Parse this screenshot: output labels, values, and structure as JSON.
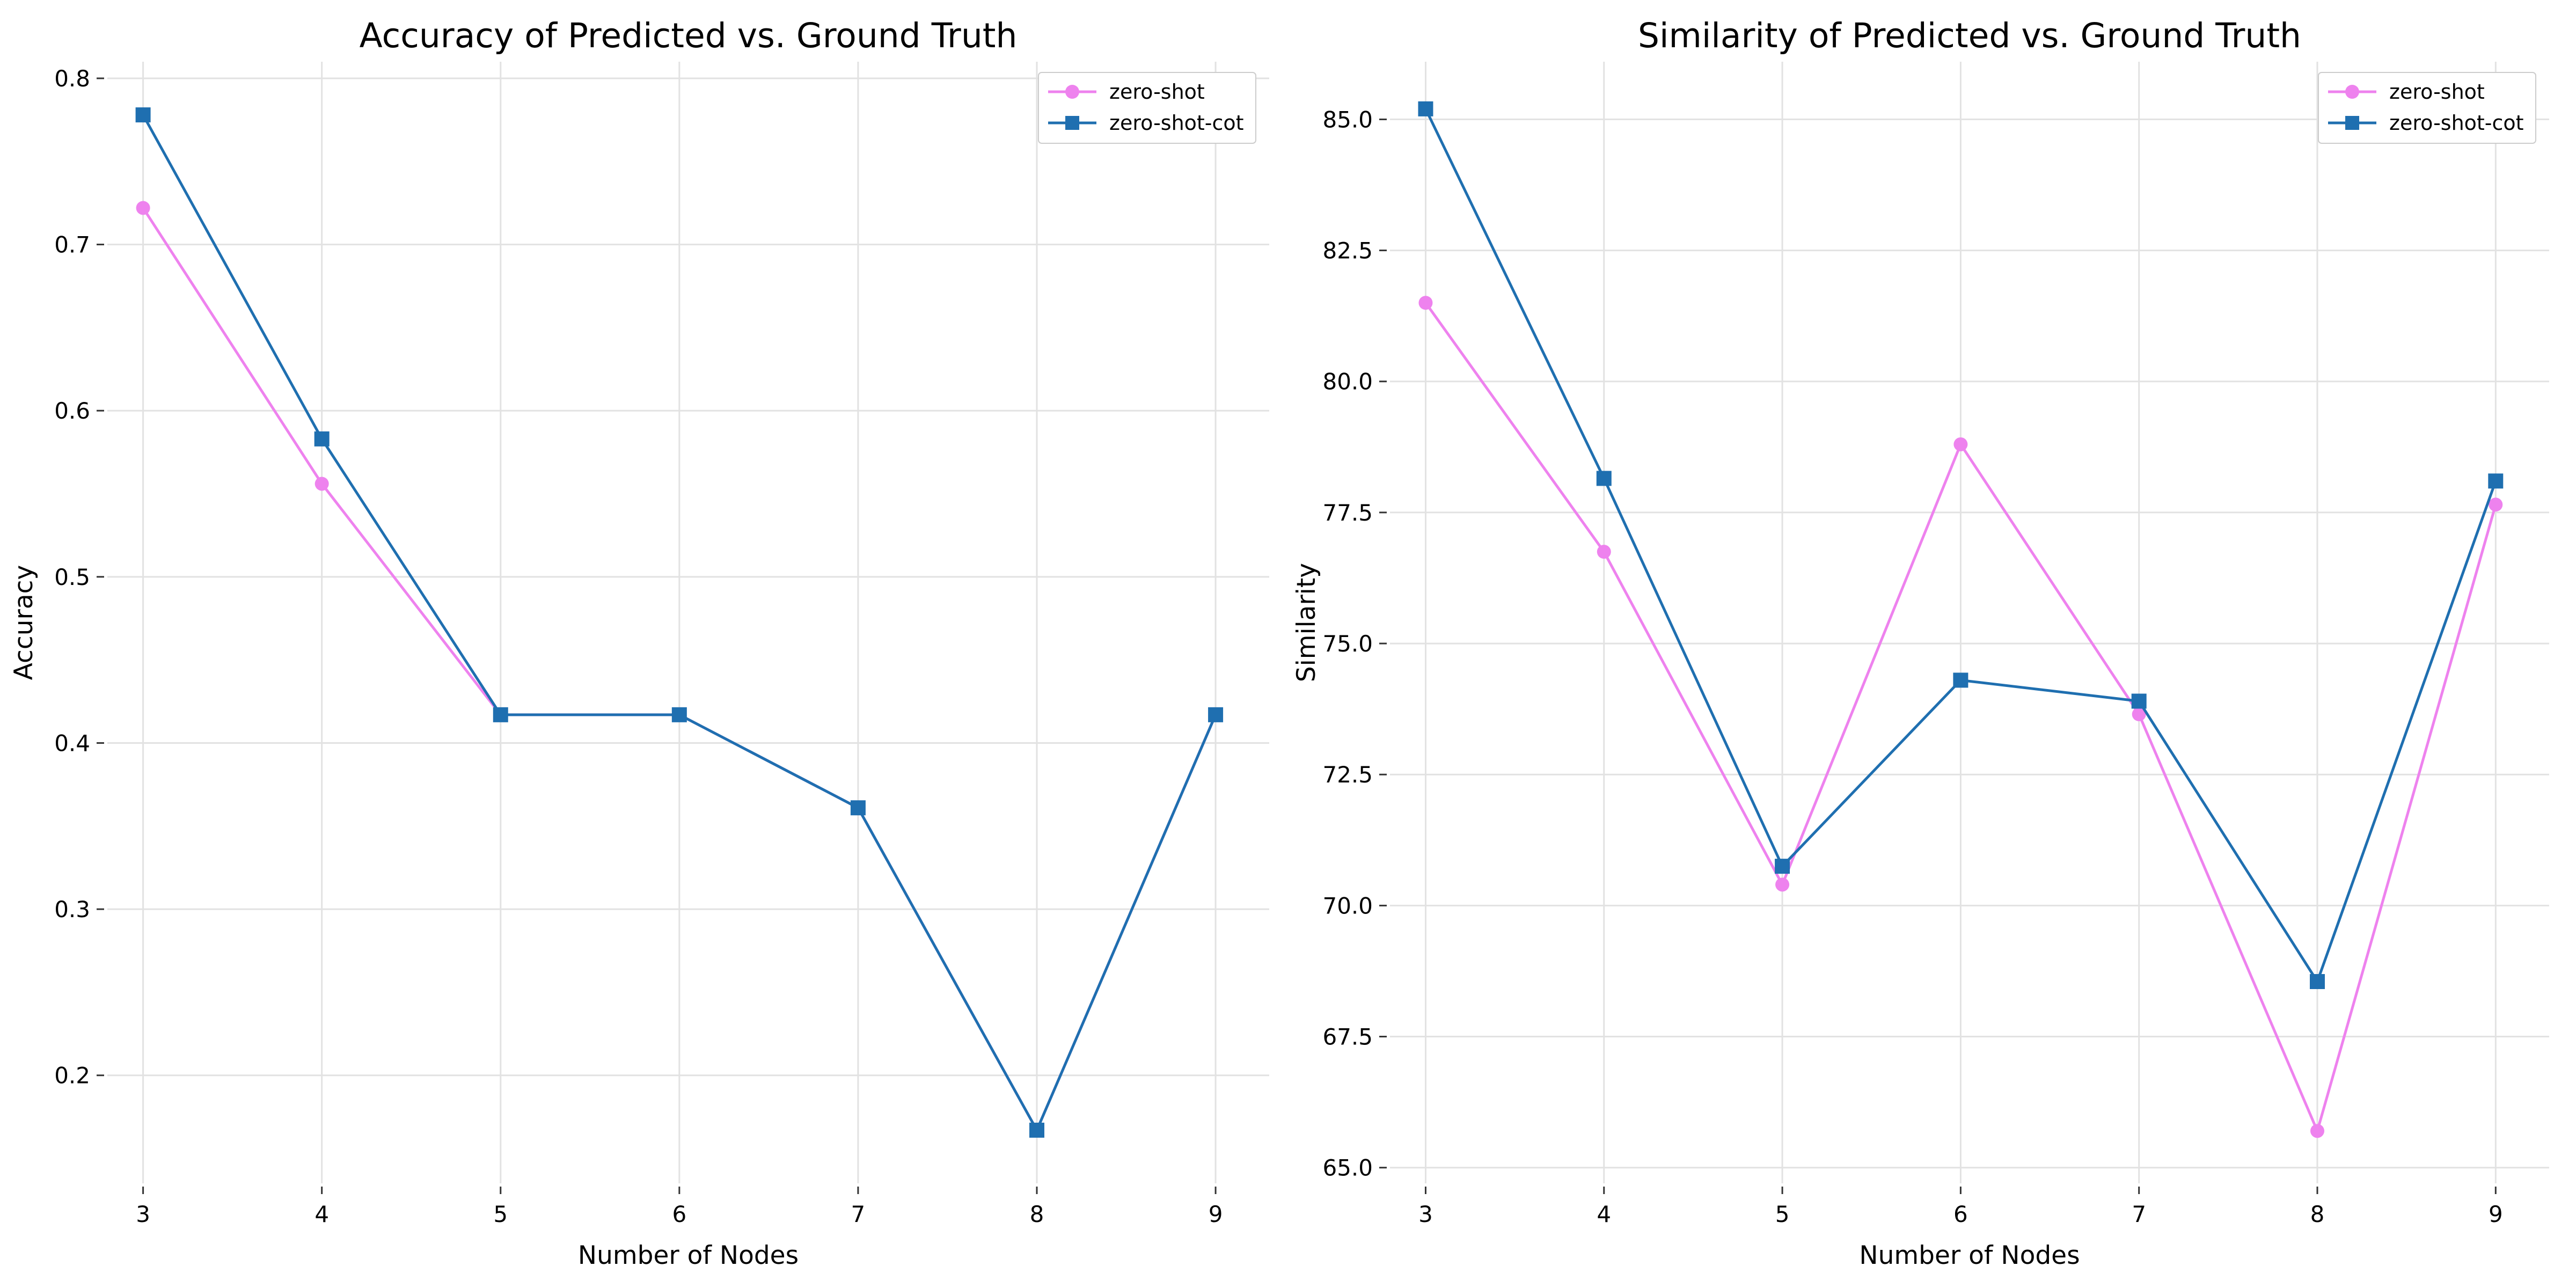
{
  "chart_data": [
    {
      "type": "line",
      "title": "Accuracy of Predicted vs. Ground Truth",
      "xlabel": "Number of Nodes",
      "ylabel": "Accuracy",
      "x": [
        3,
        4,
        5,
        6,
        7,
        8,
        9
      ],
      "xticks": [
        "3",
        "4",
        "5",
        "6",
        "7",
        "8",
        "9"
      ],
      "yticks": [
        "0.2",
        "0.3",
        "0.4",
        "0.5",
        "0.6",
        "0.7",
        "0.8"
      ],
      "ylim": [
        0.135,
        0.81
      ],
      "grid": true,
      "legend_position": "top-right",
      "series": [
        {
          "name": "zero-shot",
          "color": "#ee82ee",
          "marker": "circle",
          "values": [
            0.722,
            0.556,
            0.417,
            0.417,
            0.361,
            0.167,
            0.417
          ]
        },
        {
          "name": "zero-shot-cot",
          "color": "#1f6fb0",
          "marker": "square",
          "values": [
            0.778,
            0.583,
            0.417,
            0.417,
            0.361,
            0.167,
            0.417
          ]
        }
      ]
    },
    {
      "type": "line",
      "title": "Similarity of Predicted vs. Ground Truth",
      "xlabel": "Number of Nodes",
      "ylabel": "Similarity",
      "x": [
        3,
        4,
        5,
        6,
        7,
        8,
        9
      ],
      "xticks": [
        "3",
        "4",
        "5",
        "6",
        "7",
        "8",
        "9"
      ],
      "yticks": [
        "65.0",
        "67.5",
        "70.0",
        "72.5",
        "75.0",
        "77.5",
        "80.0",
        "82.5",
        "85.0"
      ],
      "ylim": [
        64.7,
        86.1
      ],
      "grid": true,
      "legend_position": "top-right",
      "series": [
        {
          "name": "zero-shot",
          "color": "#ee82ee",
          "marker": "circle",
          "values": [
            81.5,
            76.75,
            70.4,
            78.8,
            73.65,
            65.7,
            77.65
          ]
        },
        {
          "name": "zero-shot-cot",
          "color": "#1f6fb0",
          "marker": "square",
          "values": [
            85.2,
            78.15,
            70.75,
            74.3,
            73.9,
            68.55,
            78.1
          ]
        }
      ]
    }
  ]
}
